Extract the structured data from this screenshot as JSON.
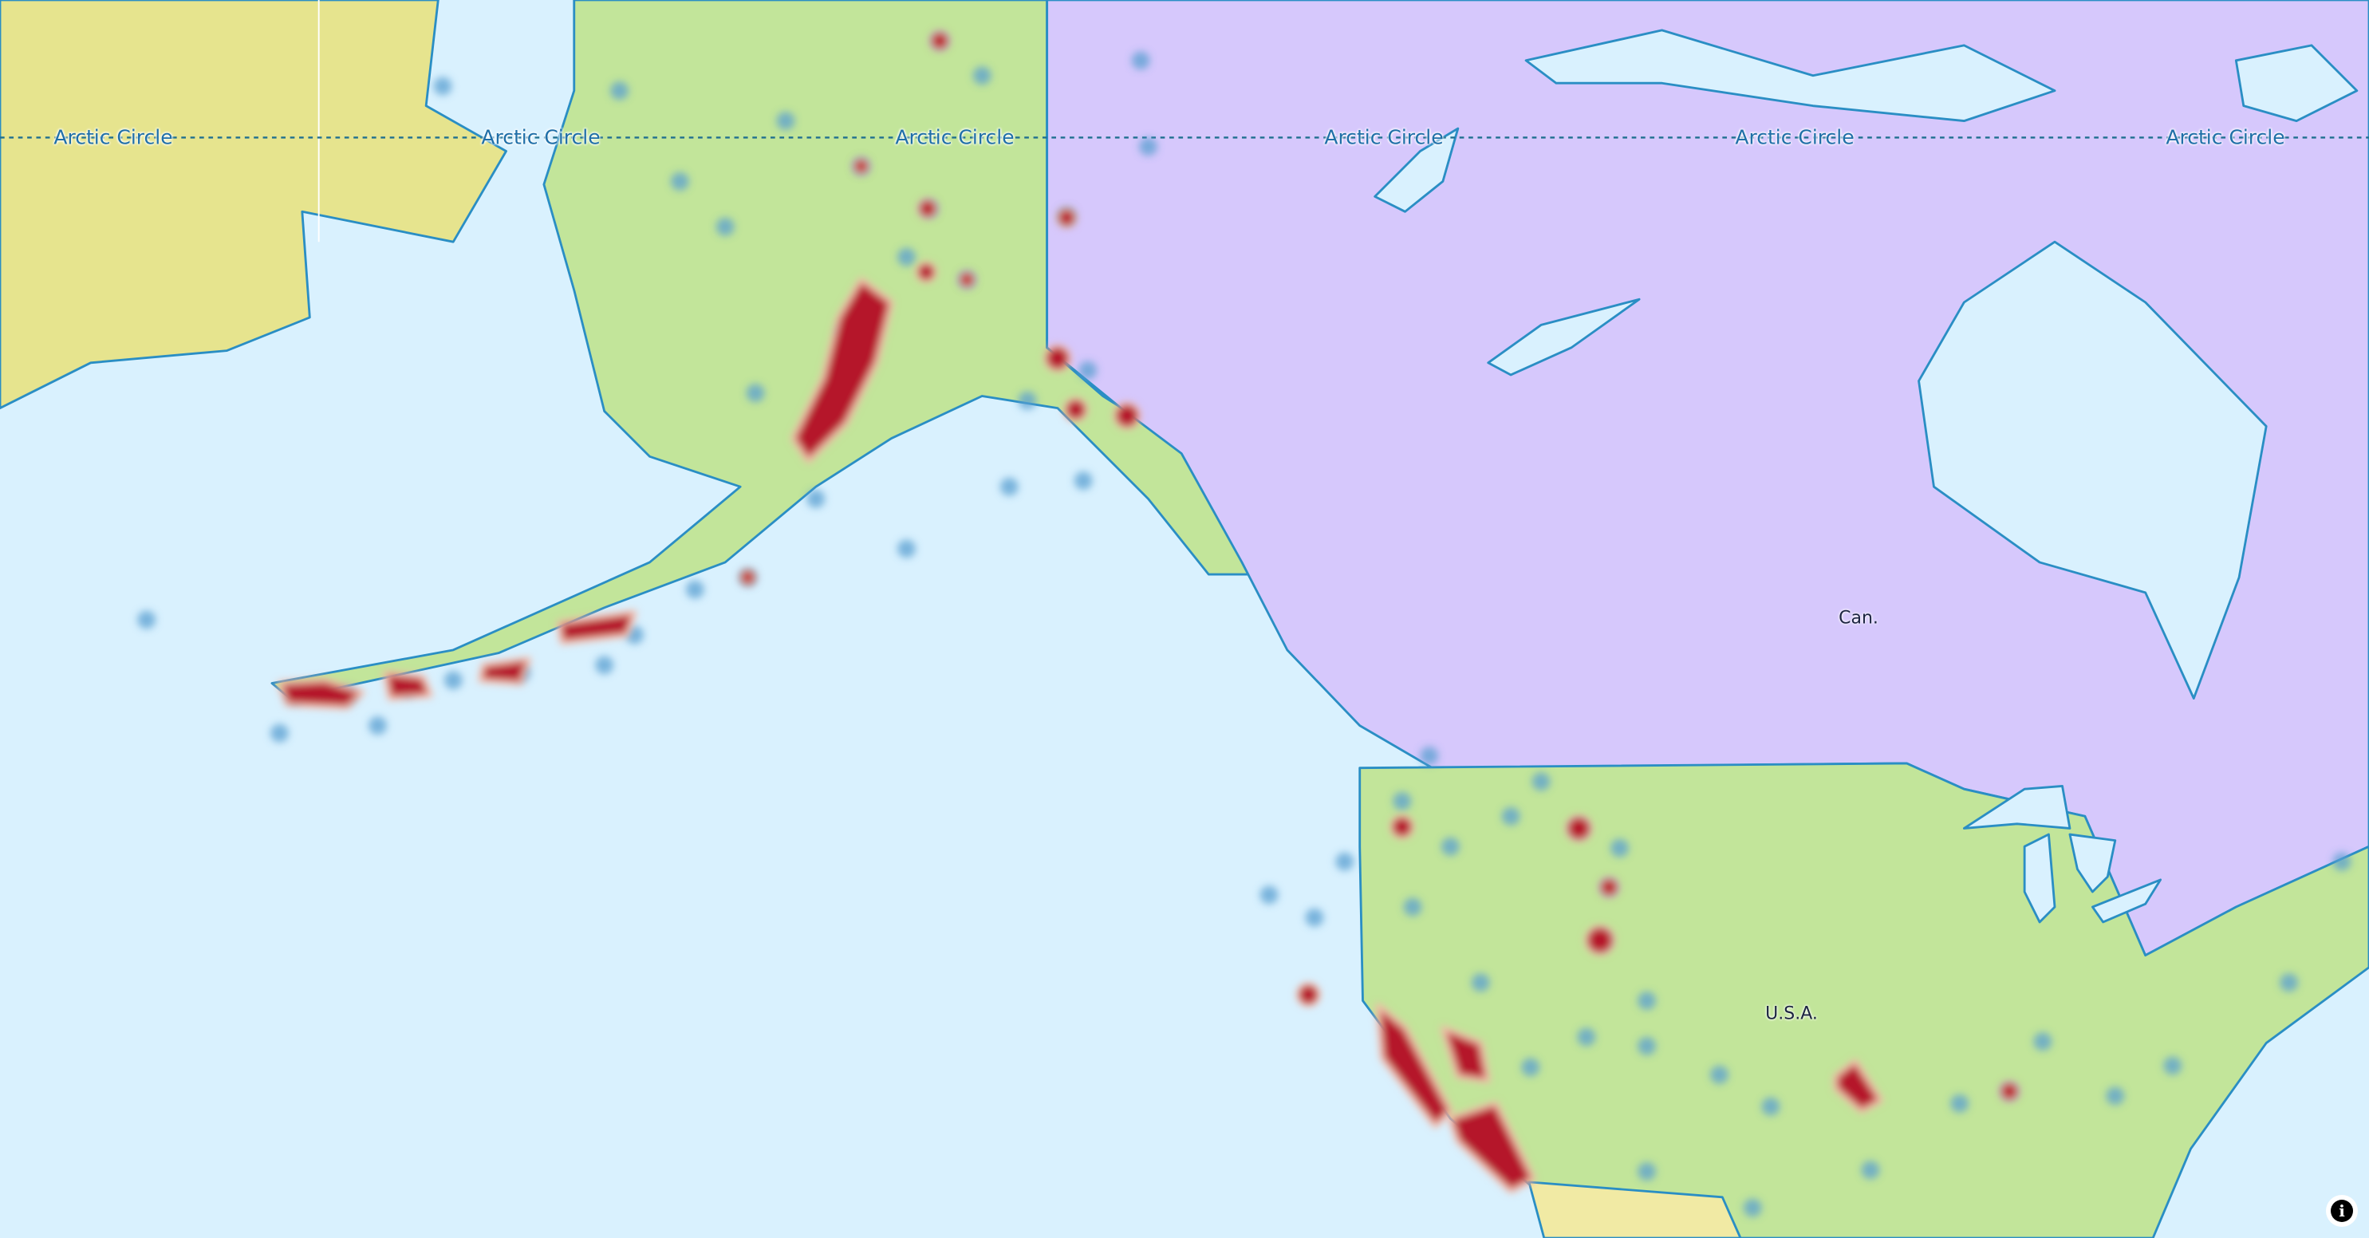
{
  "map": {
    "colors": {
      "water": "#d9f1fe",
      "russia": "#e6e48e",
      "usa": "#c2e59a",
      "canada": "#d6c8fc",
      "mexico": "#f1eaa4",
      "coast": "#2a8ec4",
      "heat_low": "#5a9fd0",
      "heat_high": "#b5162a"
    },
    "graticule": {
      "label": "Arctic Circle",
      "labels": [
        "Arctic Circle",
        "Arctic Circle",
        "Arctic Circle",
        "Arctic Circle",
        "Arctic Circle",
        "Arctic Circle"
      ]
    },
    "countries": {
      "canada": "Can.",
      "usa": "U.S.A."
    },
    "info_button": {
      "icon": "info-icon",
      "glyph": "i"
    }
  }
}
